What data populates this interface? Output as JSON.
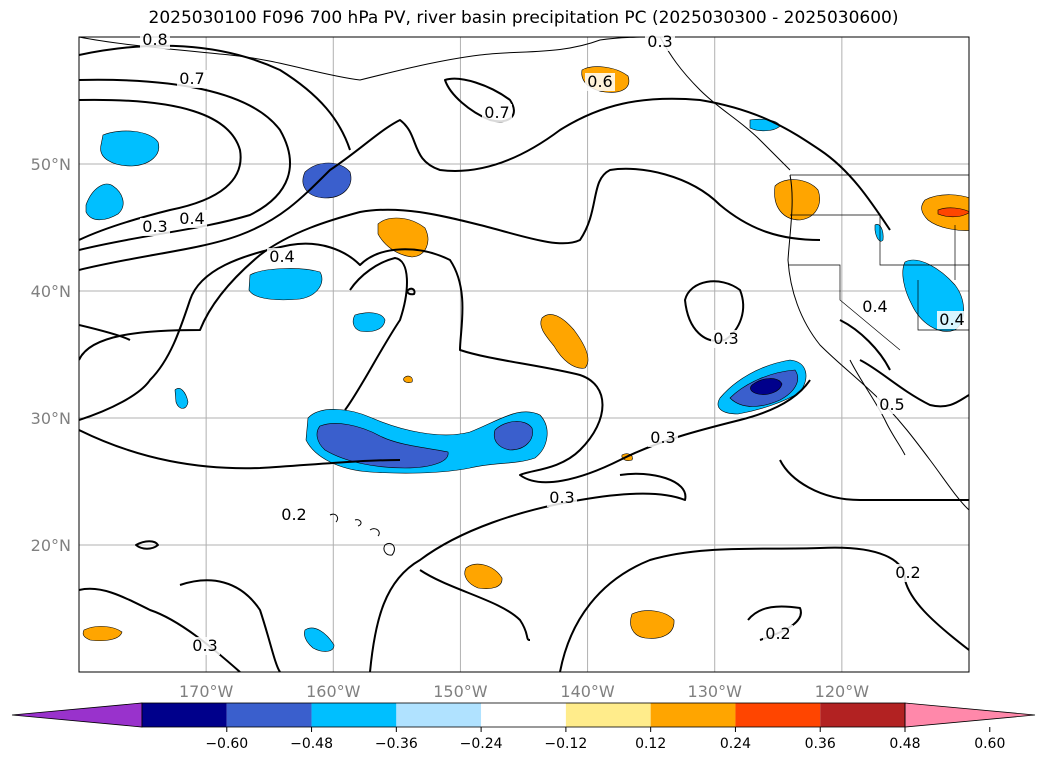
{
  "title": "2025030100 F096 700 hPa PV, river basin precipitation PC (2025030300 - 2025030600)",
  "map": {
    "projection": "plate-carree",
    "lon_range": [
      -180,
      -110
    ],
    "lat_range": [
      10,
      60
    ],
    "lat_ticks": [
      {
        "value": 20,
        "label": "20°N"
      },
      {
        "value": 30,
        "label": "30°N"
      },
      {
        "value": 40,
        "label": "40°N"
      },
      {
        "value": 50,
        "label": "50°N"
      }
    ],
    "lon_ticks": [
      {
        "value": -170,
        "label": "170°W"
      },
      {
        "value": -160,
        "label": "160°W"
      },
      {
        "value": -150,
        "label": "150°W"
      },
      {
        "value": -140,
        "label": "140°W"
      },
      {
        "value": -130,
        "label": "130°W"
      },
      {
        "value": -120,
        "label": "120°W"
      }
    ],
    "gridlines": true,
    "pv_contour_labels": [
      "0.8",
      "0.7",
      "0.7",
      "0.6",
      "0.4",
      "0.4",
      "0.3",
      "0.4",
      "0.3",
      "0.3",
      "0.3",
      "0.2",
      "0.3",
      "0.2",
      "0.2",
      "0.5",
      "0.4",
      "0.3"
    ]
  },
  "colorbar": {
    "levels": [
      "−0.60",
      "−0.48",
      "−0.36",
      "−0.24",
      "−0.12",
      "0.12",
      "0.24",
      "0.36",
      "0.48",
      "0.60"
    ],
    "colors": [
      "#9932cc",
      "#00008b",
      "#3a5fcd",
      "#00bfff",
      "#b0e2ff",
      "#ffffff",
      "#ffec8b",
      "#ffa500",
      "#ff4500",
      "#b22222",
      "#ff88aa"
    ],
    "extend": "both"
  }
}
